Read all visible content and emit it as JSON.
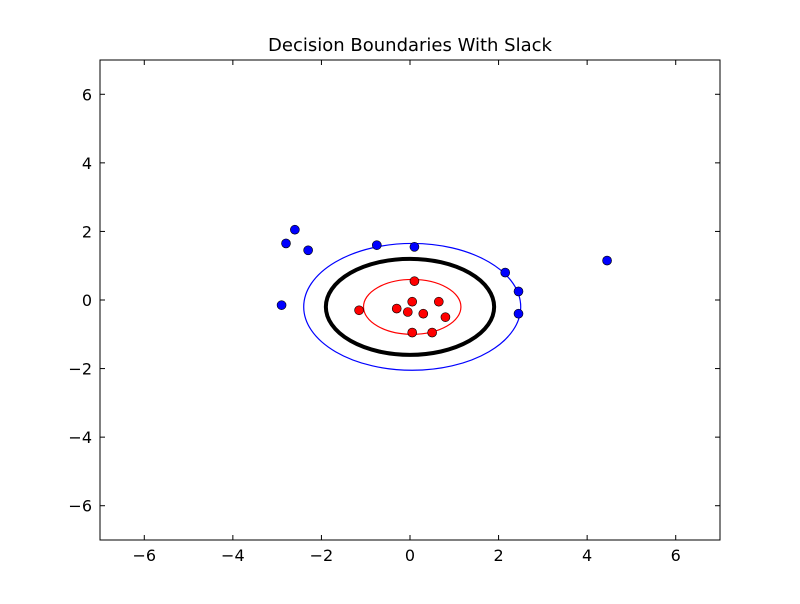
{
  "chart_data": {
    "type": "scatter",
    "title": "Decision Boundaries With Slack",
    "xlabel": "",
    "ylabel": "",
    "xlim": [
      -7,
      7
    ],
    "ylim": [
      -7,
      7
    ],
    "xticks": [
      -6,
      -4,
      -2,
      0,
      2,
      4,
      6
    ],
    "yticks": [
      -6,
      -4,
      -2,
      0,
      2,
      4,
      6
    ],
    "xtick_labels": [
      "−6",
      "−4",
      "−2",
      "0",
      "2",
      "4",
      "6"
    ],
    "ytick_labels": [
      "−6",
      "−4",
      "−2",
      "0",
      "2",
      "4",
      "6"
    ],
    "grid": false,
    "series": [
      {
        "color": "#0000ff",
        "points": [
          [
            -2.6,
            2.05
          ],
          [
            -2.8,
            1.65
          ],
          [
            -2.3,
            1.45
          ],
          [
            -2.9,
            -0.15
          ],
          [
            -0.75,
            1.6
          ],
          [
            0.1,
            1.55
          ],
          [
            2.15,
            0.8
          ],
          [
            2.45,
            0.25
          ],
          [
            2.45,
            -0.4
          ],
          [
            4.45,
            1.15
          ]
        ]
      },
      {
        "color": "#ff0000",
        "points": [
          [
            0.1,
            0.55
          ],
          [
            -1.15,
            -0.3
          ],
          [
            -0.3,
            -0.25
          ],
          [
            -0.05,
            -0.35
          ],
          [
            0.05,
            -0.05
          ],
          [
            0.3,
            -0.4
          ],
          [
            0.65,
            -0.05
          ],
          [
            0.8,
            -0.5
          ],
          [
            0.05,
            -0.95
          ],
          [
            0.5,
            -0.95
          ]
        ]
      }
    ],
    "boundaries": [
      {
        "role": "outer-margin",
        "color": "#0000ff",
        "center": [
          0.05,
          -0.2
        ],
        "radii": [
          2.45,
          1.85
        ],
        "linewidth": "thin"
      },
      {
        "role": "decision",
        "color": "#000000",
        "center": [
          0.0,
          -0.2
        ],
        "radii": [
          1.9,
          1.4
        ],
        "linewidth": "thick"
      },
      {
        "role": "inner-margin",
        "color": "#ff0000",
        "center": [
          0.05,
          -0.2
        ],
        "radii": [
          1.1,
          0.8
        ],
        "linewidth": "thin"
      }
    ]
  }
}
